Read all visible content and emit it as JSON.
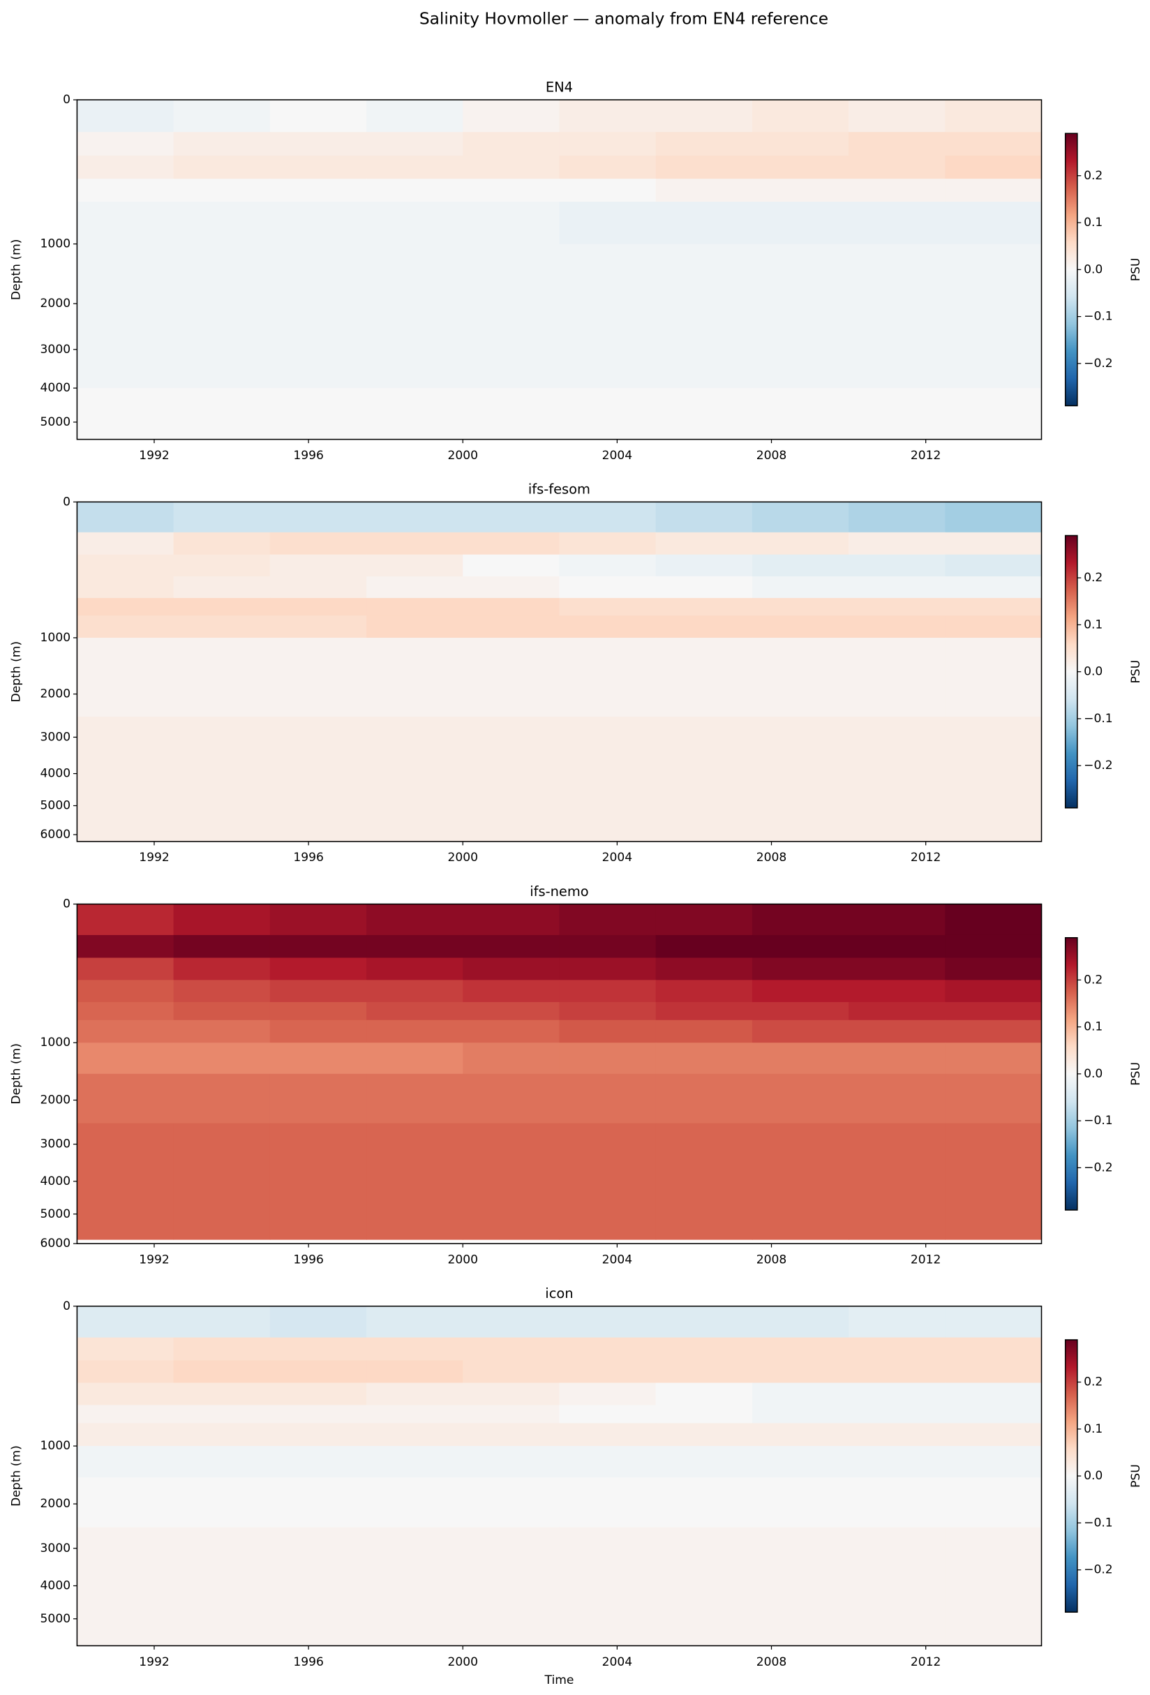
{
  "title": "Salinity Hovmoller — anomaly from EN4 reference",
  "chart_data": [
    {
      "type": "heatmap",
      "title": "EN4",
      "ylabel": "Depth (m)",
      "x_edges": [
        1990,
        1992.5,
        1995,
        1997.5,
        2000,
        2002.5,
        2005,
        2007.5,
        2010,
        2012.5,
        2015
      ],
      "y_edges": [
        0,
        50,
        150,
        300,
        500,
        700,
        1000,
        1500,
        2500,
        4000,
        5550
      ],
      "values": [
        [
          -0.02,
          -0.01,
          0.0,
          -0.01,
          0.01,
          0.02,
          0.02,
          0.03,
          0.02,
          0.03
        ],
        [
          0.01,
          0.02,
          0.02,
          0.02,
          0.03,
          0.03,
          0.04,
          0.04,
          0.05,
          0.05
        ],
        [
          0.02,
          0.03,
          0.03,
          0.03,
          0.03,
          0.04,
          0.05,
          0.05,
          0.05,
          0.06
        ],
        [
          0.0,
          0.0,
          0.0,
          0.0,
          0.0,
          0.0,
          0.01,
          0.01,
          0.01,
          0.01
        ],
        [
          -0.01,
          -0.01,
          -0.01,
          -0.01,
          -0.01,
          -0.02,
          -0.02,
          -0.02,
          -0.02,
          -0.02
        ],
        [
          -0.01,
          -0.01,
          -0.01,
          -0.01,
          -0.01,
          -0.02,
          -0.02,
          -0.02,
          -0.02,
          -0.02
        ],
        [
          -0.01,
          -0.01,
          -0.01,
          -0.01,
          -0.01,
          -0.01,
          -0.01,
          -0.01,
          -0.01,
          -0.01
        ],
        [
          -0.01,
          -0.01,
          -0.01,
          -0.01,
          -0.01,
          -0.01,
          -0.01,
          -0.01,
          -0.01,
          -0.01
        ],
        [
          -0.01,
          -0.01,
          -0.01,
          -0.01,
          -0.01,
          -0.01,
          -0.01,
          -0.01,
          -0.01,
          -0.01
        ],
        [
          0.0,
          0.0,
          0.0,
          0.0,
          0.0,
          0.0,
          0.0,
          0.0,
          0.0,
          0.0
        ]
      ],
      "xlim": [
        1990,
        2015
      ],
      "xticks": [
        1992,
        1996,
        2000,
        2004,
        2008,
        2012
      ],
      "ylim": [
        0,
        5550
      ],
      "yticks": [
        0,
        1000,
        2000,
        3000,
        4000,
        5000
      ],
      "yscale": "sqrt",
      "y_inverted": true,
      "colorbar": {
        "label": "PSU",
        "cmap": "RdBu_r",
        "vmin": -0.29,
        "vmax": 0.29,
        "ticks": [
          {
            "value": -0.2,
            "label": "−0.2"
          },
          {
            "value": -0.1,
            "label": "−0.1"
          },
          {
            "value": 0,
            "label": "0.0"
          },
          0.1,
          0.2
        ]
      }
    },
    {
      "type": "heatmap",
      "title": "ifs-fesom",
      "ylabel": "Depth (m)",
      "x_edges": [
        1990,
        1992.5,
        1995,
        1997.5,
        2000,
        2002.5,
        2005,
        2007.5,
        2010,
        2012.5,
        2015
      ],
      "y_edges": [
        0,
        50,
        150,
        300,
        500,
        700,
        1000,
        1500,
        2500,
        4000,
        6250
      ],
      "values": [
        [
          -0.07,
          -0.06,
          -0.06,
          -0.06,
          -0.06,
          -0.06,
          -0.07,
          -0.08,
          -0.09,
          -0.1
        ],
        [
          0.02,
          0.04,
          0.05,
          0.05,
          0.05,
          0.04,
          0.03,
          0.03,
          0.02,
          0.02
        ],
        [
          0.03,
          0.03,
          0.02,
          0.02,
          0.0,
          -0.01,
          -0.02,
          -0.03,
          -0.03,
          -0.04
        ],
        [
          0.03,
          0.02,
          0.02,
          0.01,
          0.01,
          0.0,
          0.0,
          -0.01,
          -0.01,
          -0.01
        ],
        [
          0.06,
          0.06,
          0.06,
          0.06,
          0.06,
          0.05,
          0.05,
          0.05,
          0.05,
          0.05
        ],
        [
          0.05,
          0.05,
          0.05,
          0.06,
          0.06,
          0.06,
          0.06,
          0.06,
          0.06,
          0.06
        ],
        [
          0.01,
          0.01,
          0.01,
          0.01,
          0.01,
          0.01,
          0.01,
          0.01,
          0.01,
          0.01
        ],
        [
          0.01,
          0.01,
          0.01,
          0.01,
          0.01,
          0.01,
          0.01,
          0.01,
          0.01,
          0.01
        ],
        [
          0.02,
          0.02,
          0.02,
          0.02,
          0.02,
          0.02,
          0.02,
          0.02,
          0.02,
          0.02
        ],
        [
          0.02,
          0.02,
          0.02,
          0.02,
          0.02,
          0.02,
          0.02,
          0.02,
          0.02,
          0.02
        ]
      ],
      "xlim": [
        1990,
        2015
      ],
      "xticks": [
        1992,
        1996,
        2000,
        2004,
        2008,
        2012
      ],
      "ylim": [
        0,
        6250
      ],
      "yticks": [
        0,
        1000,
        2000,
        3000,
        4000,
        5000,
        6000
      ],
      "yscale": "sqrt",
      "y_inverted": true,
      "colorbar": {
        "label": "PSU",
        "cmap": "RdBu_r",
        "vmin": -0.29,
        "vmax": 0.29,
        "ticks": [
          {
            "value": -0.2,
            "label": "−0.2"
          },
          {
            "value": -0.1,
            "label": "−0.1"
          },
          {
            "value": 0,
            "label": "0.0"
          },
          0.1,
          0.2
        ]
      }
    },
    {
      "type": "heatmap",
      "title": "ifs-nemo",
      "ylabel": "Depth (m)",
      "x_edges": [
        1990,
        1992.5,
        1995,
        1997.5,
        2000,
        2002.5,
        2005,
        2007.5,
        2010,
        2012.5,
        2015
      ],
      "y_edges": [
        0,
        50,
        150,
        300,
        500,
        700,
        1000,
        1500,
        2500,
        4000,
        5850
      ],
      "values": [
        [
          0.22,
          0.24,
          0.25,
          0.26,
          0.26,
          0.27,
          0.27,
          0.28,
          0.28,
          0.29
        ],
        [
          0.27,
          0.28,
          0.28,
          0.28,
          0.28,
          0.28,
          0.29,
          0.29,
          0.29,
          0.29
        ],
        [
          0.2,
          0.22,
          0.23,
          0.24,
          0.25,
          0.25,
          0.26,
          0.27,
          0.27,
          0.28
        ],
        [
          0.18,
          0.19,
          0.2,
          0.2,
          0.21,
          0.21,
          0.22,
          0.23,
          0.23,
          0.24
        ],
        [
          0.17,
          0.18,
          0.18,
          0.19,
          0.19,
          0.2,
          0.21,
          0.21,
          0.22,
          0.22
        ],
        [
          0.16,
          0.16,
          0.17,
          0.17,
          0.17,
          0.18,
          0.18,
          0.19,
          0.19,
          0.19
        ],
        [
          0.14,
          0.14,
          0.14,
          0.14,
          0.15,
          0.15,
          0.15,
          0.15,
          0.15,
          0.15
        ],
        [
          0.16,
          0.16,
          0.16,
          0.16,
          0.16,
          0.16,
          0.16,
          0.16,
          0.16,
          0.16
        ],
        [
          0.17,
          0.17,
          0.17,
          0.17,
          0.17,
          0.17,
          0.17,
          0.17,
          0.17,
          0.17
        ],
        [
          0.17,
          0.17,
          0.17,
          0.17,
          0.17,
          0.17,
          0.17,
          0.17,
          0.17,
          0.17
        ]
      ],
      "xlim": [
        1990,
        2015
      ],
      "xticks": [
        1992,
        1996,
        2000,
        2004,
        2008,
        2012
      ],
      "ylim": [
        0,
        6000
      ],
      "yticks": [
        0,
        1000,
        2000,
        3000,
        4000,
        5000,
        6000
      ],
      "yscale": "sqrt",
      "y_inverted": true,
      "colorbar": {
        "label": "PSU",
        "cmap": "RdBu_r",
        "vmin": -0.29,
        "vmax": 0.29,
        "ticks": [
          {
            "value": -0.2,
            "label": "−0.2"
          },
          {
            "value": -0.1,
            "label": "−0.1"
          },
          {
            "value": 0,
            "label": "0.0"
          },
          0.1,
          0.2
        ]
      }
    },
    {
      "type": "heatmap",
      "title": "icon",
      "ylabel": "Depth (m)",
      "xlabel": "Time",
      "x_edges": [
        1990,
        1992.5,
        1995,
        1997.5,
        2000,
        2002.5,
        2005,
        2007.5,
        2010,
        2012.5,
        2015
      ],
      "y_edges": [
        0,
        50,
        150,
        300,
        500,
        700,
        1000,
        1500,
        2500,
        4000,
        5900
      ],
      "values": [
        [
          -0.04,
          -0.04,
          -0.05,
          -0.04,
          -0.04,
          -0.04,
          -0.04,
          -0.04,
          -0.03,
          -0.03
        ],
        [
          0.04,
          0.05,
          0.05,
          0.05,
          0.05,
          0.05,
          0.05,
          0.05,
          0.05,
          0.05
        ],
        [
          0.05,
          0.06,
          0.06,
          0.06,
          0.05,
          0.05,
          0.05,
          0.05,
          0.05,
          0.05
        ],
        [
          0.03,
          0.03,
          0.03,
          0.02,
          0.02,
          0.01,
          0.0,
          -0.01,
          -0.01,
          -0.01
        ],
        [
          0.01,
          0.01,
          0.01,
          0.01,
          0.01,
          0.0,
          0.0,
          -0.01,
          -0.01,
          -0.01
        ],
        [
          0.02,
          0.02,
          0.02,
          0.02,
          0.02,
          0.02,
          0.02,
          0.02,
          0.02,
          0.02
        ],
        [
          -0.01,
          -0.01,
          -0.01,
          -0.01,
          -0.01,
          -0.01,
          -0.01,
          -0.01,
          -0.01,
          -0.01
        ],
        [
          0.0,
          0.0,
          0.0,
          0.0,
          0.0,
          0.0,
          0.0,
          0.0,
          0.0,
          0.0
        ],
        [
          0.01,
          0.01,
          0.01,
          0.01,
          0.01,
          0.01,
          0.01,
          0.01,
          0.01,
          0.01
        ],
        [
          0.01,
          0.01,
          0.01,
          0.01,
          0.01,
          0.01,
          0.01,
          0.01,
          0.01,
          0.01
        ]
      ],
      "xlim": [
        1990,
        2015
      ],
      "xticks": [
        1992,
        1996,
        2000,
        2004,
        2008,
        2012
      ],
      "ylim": [
        0,
        5900
      ],
      "yticks": [
        0,
        1000,
        2000,
        3000,
        4000,
        5000
      ],
      "yscale": "sqrt",
      "y_inverted": true,
      "colorbar": {
        "label": "PSU",
        "cmap": "RdBu_r",
        "vmin": -0.29,
        "vmax": 0.29,
        "ticks": [
          {
            "value": -0.2,
            "label": "−0.2"
          },
          {
            "value": -0.1,
            "label": "−0.1"
          },
          {
            "value": 0,
            "label": "0.0"
          },
          0.1,
          0.2
        ]
      }
    }
  ]
}
